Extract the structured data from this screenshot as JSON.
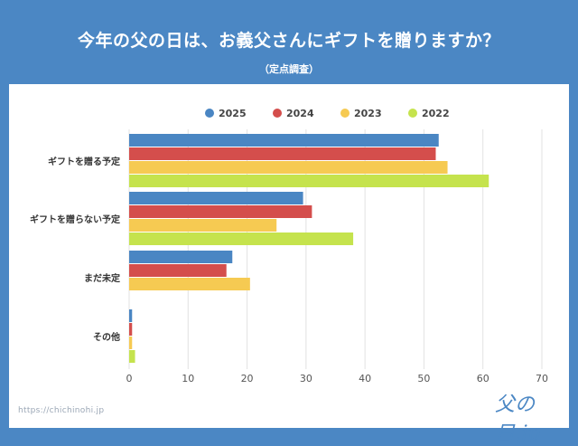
{
  "header": {
    "title": "今年の父の日は、お義父さんにギフトを贈りますか？",
    "subtitle": "（定点調査）"
  },
  "footer": {
    "source": "https://chichinohi.jp",
    "logo": "父の日.jp"
  },
  "colors": {
    "background": "#4b87c4",
    "2025": "#4a86c3",
    "2024": "#d44e4c",
    "2023": "#f6ca52",
    "2022": "#c5e34d",
    "grid": "#e2e2e2"
  },
  "chart_data": {
    "type": "bar",
    "orientation": "horizontal",
    "categories": [
      "ギフトを贈る予定",
      "ギフトを贈らない予定",
      "まだ未定",
      "その他"
    ],
    "series": [
      {
        "name": "2025",
        "values": [
          52.5,
          29.5,
          17.5,
          0.5
        ]
      },
      {
        "name": "2024",
        "values": [
          52,
          31,
          16.5,
          0.5
        ]
      },
      {
        "name": "2023",
        "values": [
          54,
          25,
          20.5,
          0.5
        ]
      },
      {
        "name": "2022",
        "values": [
          61,
          38,
          0,
          1
        ]
      }
    ],
    "xlim": [
      0,
      70
    ],
    "xticks": [
      0,
      10,
      20,
      30,
      40,
      50,
      60,
      70
    ],
    "grid": true,
    "legend": "top"
  }
}
